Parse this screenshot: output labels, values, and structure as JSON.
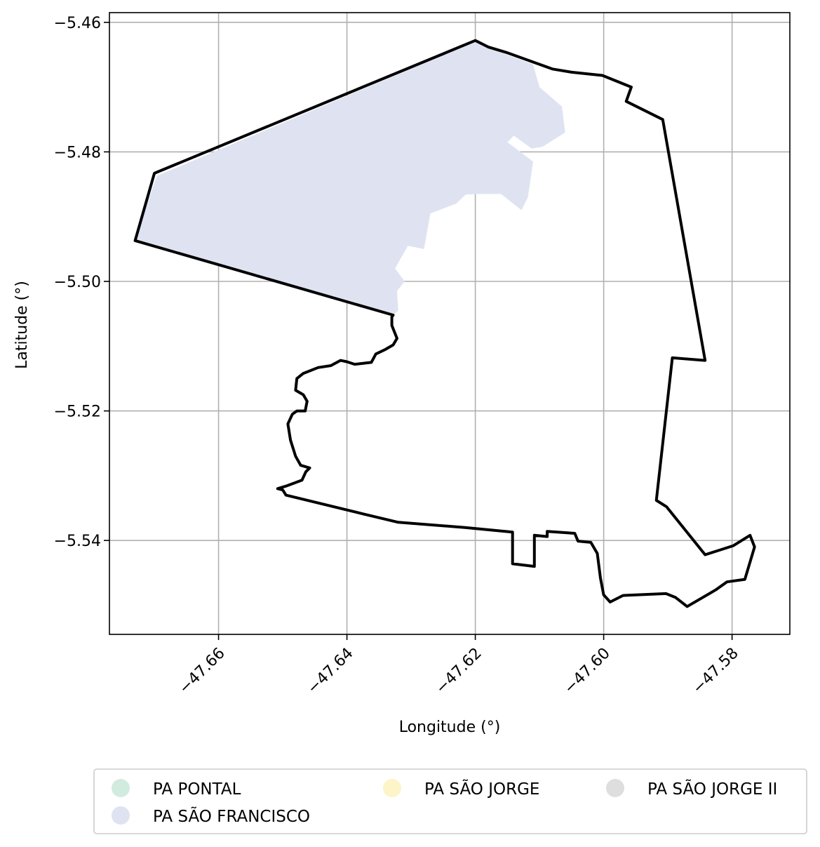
{
  "chart_data": {
    "type": "map",
    "xlabel": "Longitude (°)",
    "ylabel": "Latitude (°)",
    "xlim": [
      -47.677,
      -47.571
    ],
    "ylim": [
      -5.5545,
      -5.4585
    ],
    "x_ticks": [
      -47.66,
      -47.64,
      -47.62,
      -47.6,
      -47.58
    ],
    "x_tick_labels": [
      "−47.66",
      "−47.64",
      "−47.62",
      "−47.60",
      "−47.58"
    ],
    "y_ticks": [
      -5.46,
      -5.48,
      -5.5,
      -5.52,
      -5.54
    ],
    "y_tick_labels": [
      "−5.46",
      "−5.48",
      "−5.50",
      "−5.52",
      "−5.54"
    ],
    "grid": true,
    "legend": {
      "placement": "bottom-center",
      "columns": 3,
      "entries": [
        {
          "label": "PA PONTAL",
          "color": "#d1ecdf"
        },
        {
          "label": "PA SÃO FRANCISCO",
          "color": "#dfe3f1"
        },
        {
          "label": "PA SÃO JORGE",
          "color": "#fdf4c7"
        },
        {
          "label": "PA SÃO JORGE II",
          "color": "#dedede"
        }
      ]
    },
    "regions": [
      {
        "label": "PA SÃO FRANCISCO",
        "fill": "#dfe3f1",
        "coords": [
          [
            -47.6696,
            -5.4837
          ],
          [
            -47.62,
            -5.463
          ],
          [
            -47.615,
            -5.465
          ],
          [
            -47.611,
            -5.4665
          ],
          [
            -47.61,
            -5.47
          ],
          [
            -47.6065,
            -5.473
          ],
          [
            -47.606,
            -5.477
          ],
          [
            -47.6095,
            -5.4792
          ],
          [
            -47.6112,
            -5.4795
          ],
          [
            -47.614,
            -5.4775
          ],
          [
            -47.615,
            -5.4785
          ],
          [
            -47.611,
            -5.4815
          ],
          [
            -47.6118,
            -5.487
          ],
          [
            -47.6128,
            -5.489
          ],
          [
            -47.616,
            -5.4865
          ],
          [
            -47.619,
            -5.4865
          ],
          [
            -47.6215,
            -5.4866
          ],
          [
            -47.623,
            -5.488
          ],
          [
            -47.627,
            -5.4895
          ],
          [
            -47.628,
            -5.495
          ],
          [
            -47.6305,
            -5.4945
          ],
          [
            -47.6325,
            -5.498
          ],
          [
            -47.631,
            -5.5
          ],
          [
            -47.6322,
            -5.5015
          ],
          [
            -47.632,
            -5.5045
          ],
          [
            -47.6328,
            -5.5052
          ],
          [
            -47.6732,
            -5.4938
          ]
        ]
      }
    ],
    "boundary": {
      "label": "outline",
      "stroke": "#000000",
      "coords": [
        [
          -47.673,
          -5.4937
        ],
        [
          -47.67,
          -5.4833
        ],
        [
          -47.62,
          -5.4628
        ],
        [
          -47.618,
          -5.4638
        ],
        [
          -47.615,
          -5.4647
        ],
        [
          -47.608,
          -5.4672
        ],
        [
          -47.605,
          -5.4677
        ],
        [
          -47.6002,
          -5.4682
        ],
        [
          -47.5957,
          -5.47
        ],
        [
          -47.5965,
          -5.4722
        ],
        [
          -47.5908,
          -5.475
        ],
        [
          -47.5842,
          -5.5122
        ],
        [
          -47.5893,
          -5.5118
        ],
        [
          -47.5918,
          -5.5338
        ],
        [
          -47.5902,
          -5.5348
        ],
        [
          -47.5842,
          -5.5422
        ],
        [
          -47.5798,
          -5.5408
        ],
        [
          -47.5772,
          -5.5392
        ],
        [
          -47.5765,
          -5.541
        ],
        [
          -47.578,
          -5.546
        ],
        [
          -47.5808,
          -5.5464
        ],
        [
          -47.5825,
          -5.5476
        ],
        [
          -47.587,
          -5.5502
        ],
        [
          -47.5888,
          -5.5488
        ],
        [
          -47.5903,
          -5.5482
        ],
        [
          -47.597,
          -5.5485
        ],
        [
          -47.599,
          -5.5495
        ],
        [
          -47.6,
          -5.5484
        ],
        [
          -47.6005,
          -5.5458
        ],
        [
          -47.601,
          -5.542
        ],
        [
          -47.602,
          -5.5403
        ],
        [
          -47.604,
          -5.5401
        ],
        [
          -47.6045,
          -5.5389
        ],
        [
          -47.6088,
          -5.5386
        ],
        [
          -47.6088,
          -5.5394
        ],
        [
          -47.6108,
          -5.5392
        ],
        [
          -47.6108,
          -5.544
        ],
        [
          -47.6142,
          -5.5436
        ],
        [
          -47.6142,
          -5.5387
        ],
        [
          -47.6216,
          -5.538
        ],
        [
          -47.632,
          -5.5372
        ],
        [
          -47.6375,
          -5.5359
        ],
        [
          -47.6495,
          -5.533
        ],
        [
          -47.65,
          -5.5322
        ],
        [
          -47.6508,
          -5.532
        ],
        [
          -47.6495,
          -5.5316
        ],
        [
          -47.647,
          -5.5307
        ],
        [
          -47.6464,
          -5.5294
        ],
        [
          -47.6458,
          -5.5288
        ],
        [
          -47.6472,
          -5.5284
        ],
        [
          -47.648,
          -5.527
        ],
        [
          -47.6488,
          -5.5245
        ],
        [
          -47.6492,
          -5.522
        ],
        [
          -47.6485,
          -5.5205
        ],
        [
          -47.6478,
          -5.52
        ],
        [
          -47.6465,
          -5.52
        ],
        [
          -47.6462,
          -5.5185
        ],
        [
          -47.6468,
          -5.5175
        ],
        [
          -47.648,
          -5.5168
        ],
        [
          -47.6478,
          -5.515
        ],
        [
          -47.6468,
          -5.5142
        ],
        [
          -47.6445,
          -5.5133
        ],
        [
          -47.6425,
          -5.513
        ],
        [
          -47.641,
          -5.5122
        ],
        [
          -47.64,
          -5.5124
        ],
        [
          -47.6388,
          -5.5128
        ],
        [
          -47.6362,
          -5.5125
        ],
        [
          -47.6355,
          -5.5112
        ],
        [
          -47.634,
          -5.5105
        ],
        [
          -47.6328,
          -5.5098
        ],
        [
          -47.6322,
          -5.5088
        ],
        [
          -47.633,
          -5.5068
        ],
        [
          -47.633,
          -5.5055
        ],
        [
          -47.6328,
          -5.5052
        ],
        [
          -47.673,
          -5.4937
        ]
      ]
    }
  }
}
